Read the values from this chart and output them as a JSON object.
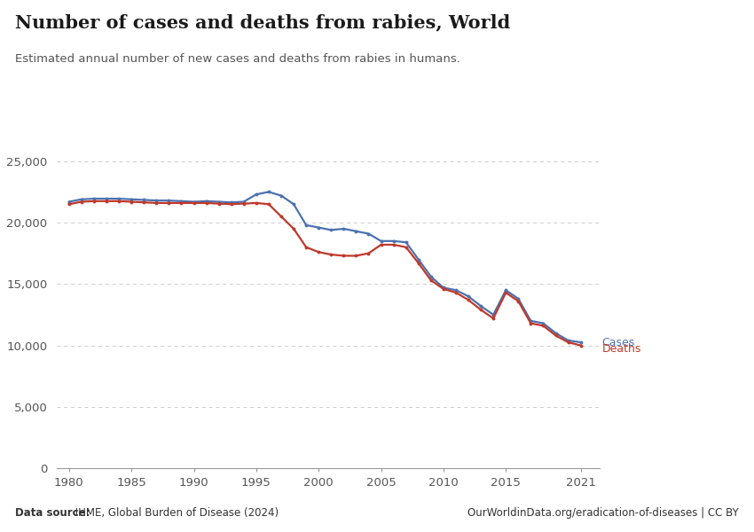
{
  "title": "Number of cases and deaths from rabies, World",
  "subtitle": "Estimated annual number of new cases and deaths from rabies in humans.",
  "datasource_bold": "Data source:",
  "datasource_rest": " IHME, Global Burden of Disease (2024)",
  "url": "OurWorldinData.org/eradication-of-diseases | CC BY",
  "background_color": "#ffffff",
  "cases_color": "#4C72B0",
  "deaths_color": "#C0392B",
  "years": [
    1980,
    1981,
    1982,
    1983,
    1984,
    1985,
    1986,
    1987,
    1988,
    1989,
    1990,
    1991,
    1992,
    1993,
    1994,
    1995,
    1996,
    1997,
    1998,
    1999,
    2000,
    2001,
    2002,
    2003,
    2004,
    2005,
    2006,
    2007,
    2008,
    2009,
    2010,
    2011,
    2012,
    2013,
    2014,
    2015,
    2016,
    2017,
    2018,
    2019,
    2020,
    2021
  ],
  "cases": [
    21700,
    21900,
    21950,
    21950,
    21950,
    21900,
    21850,
    21800,
    21800,
    21750,
    21700,
    21750,
    21700,
    21650,
    21700,
    22300,
    22500,
    22200,
    21500,
    19800,
    19600,
    19400,
    19500,
    19300,
    19100,
    18500,
    18500,
    18400,
    17000,
    15600,
    14700,
    14500,
    14000,
    13200,
    12500,
    14500,
    13800,
    12000,
    11800,
    11000,
    10400,
    10250
  ],
  "deaths": [
    21500,
    21700,
    21750,
    21750,
    21750,
    21700,
    21650,
    21600,
    21600,
    21600,
    21600,
    21600,
    21550,
    21500,
    21550,
    21600,
    21500,
    20500,
    19500,
    18000,
    17600,
    17400,
    17300,
    17300,
    17500,
    18200,
    18200,
    18000,
    16700,
    15300,
    14600,
    14300,
    13700,
    12900,
    12200,
    14300,
    13600,
    11800,
    11600,
    10800,
    10250,
    10000
  ],
  "ylim": [
    0,
    26000
  ],
  "yticks": [
    0,
    5000,
    10000,
    15000,
    20000,
    25000
  ],
  "ytick_labels": [
    "0",
    "5,000",
    "10,000",
    "15,000",
    "20,000",
    "25,000"
  ],
  "xticks": [
    1980,
    1985,
    1990,
    1995,
    2000,
    2005,
    2010,
    2015,
    2021
  ],
  "marker_size": 2.8,
  "line_width": 1.6,
  "owid_box_color": "#1a3560",
  "owid_red": "#c0392b",
  "grid_color": "#cccccc",
  "spine_color": "#999999",
  "tick_color": "#555555",
  "text_color": "#333333",
  "subtitle_color": "#555555"
}
